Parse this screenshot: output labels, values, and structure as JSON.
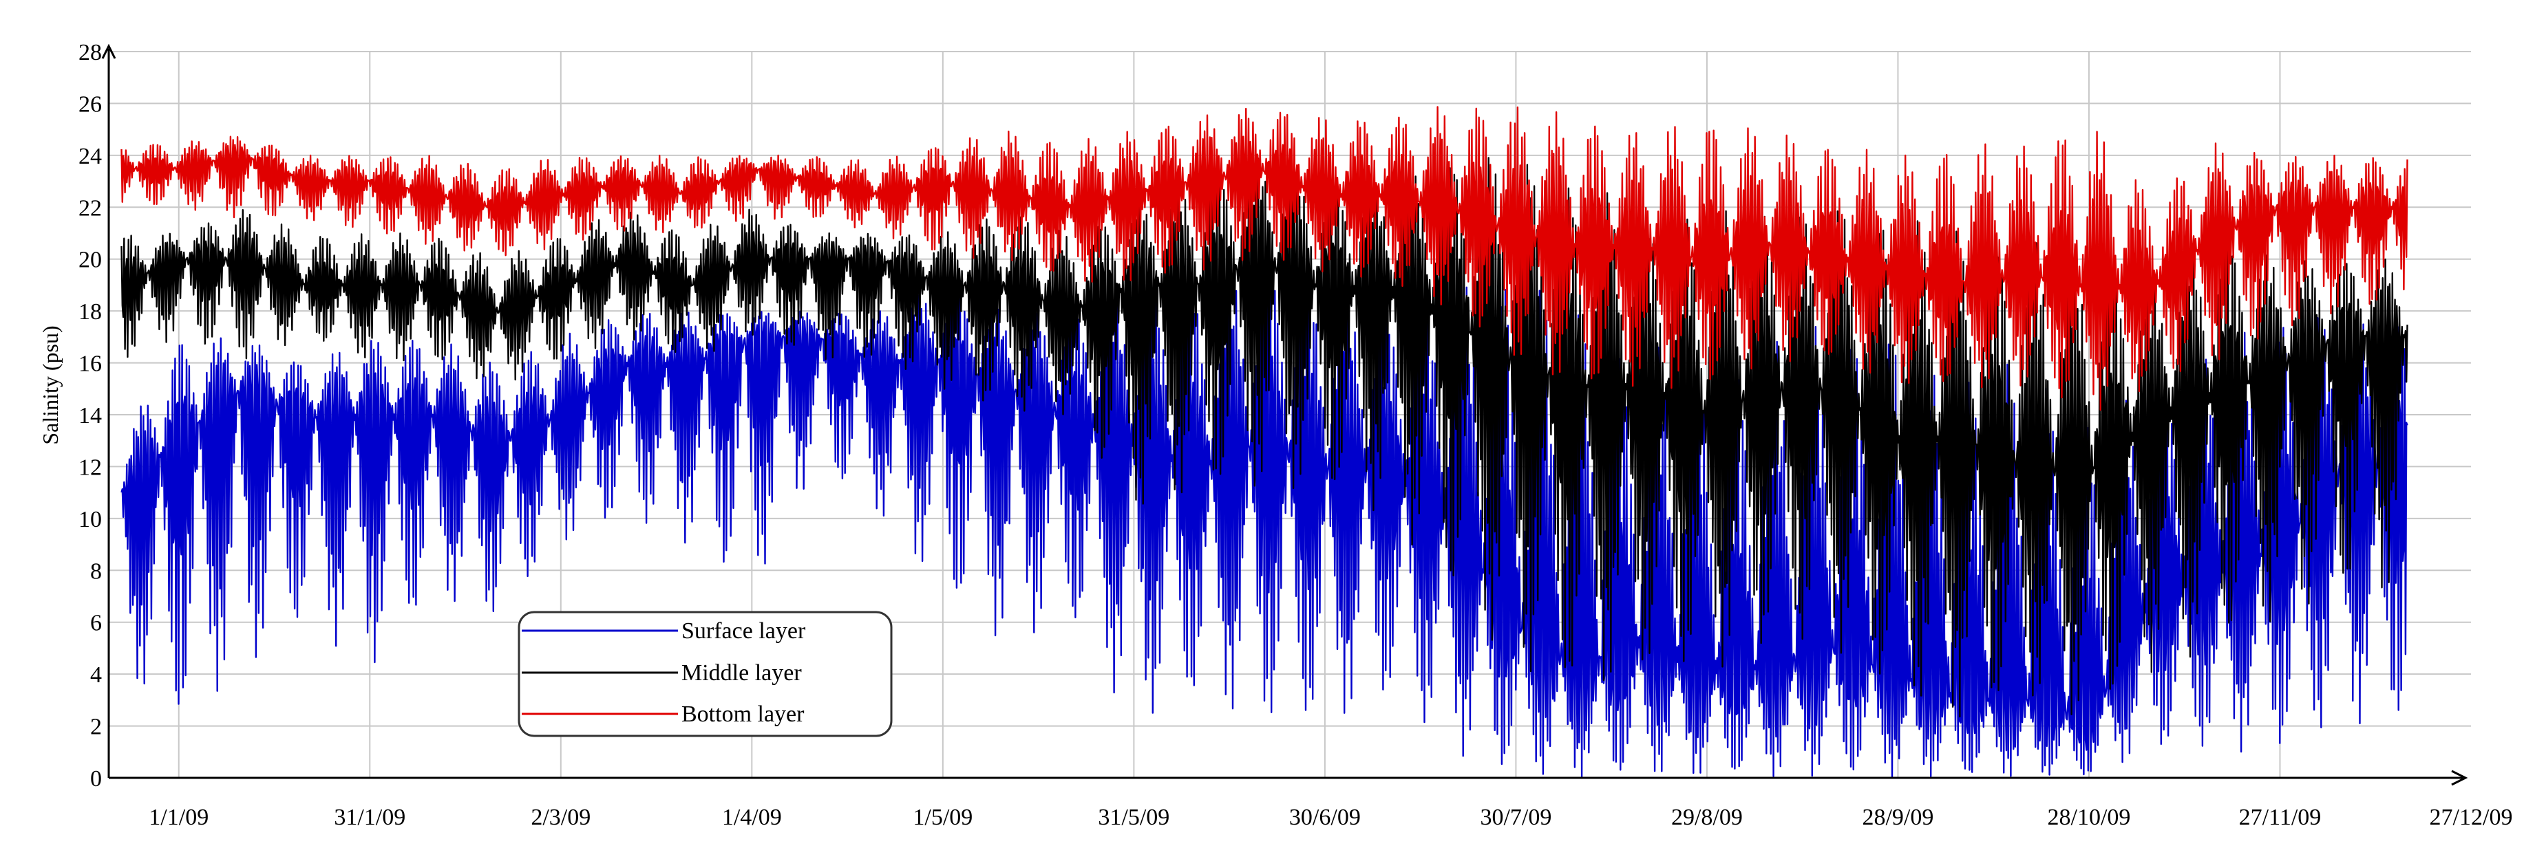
{
  "chart_data": {
    "type": "line",
    "xlabel": "",
    "ylabel": "Salinity (psu)",
    "ylim": [
      0,
      28
    ],
    "y_ticks": [
      0,
      2,
      4,
      6,
      8,
      10,
      12,
      14,
      16,
      18,
      20,
      22,
      24,
      26,
      28
    ],
    "y_tick_labels": [
      "0",
      "2",
      "4",
      "6",
      "8",
      "10",
      "12",
      "14",
      "16",
      "18",
      "20",
      "22",
      "24",
      "26",
      "28"
    ],
    "x_range_days": [
      "2008-12-21",
      "2009-12-27"
    ],
    "x_ticks": [
      "2009-01-01",
      "2009-01-31",
      "2009-03-02",
      "2009-04-01",
      "2009-05-01",
      "2009-05-31",
      "2009-06-30",
      "2009-07-30",
      "2009-08-29",
      "2009-09-28",
      "2009-10-28",
      "2009-11-27",
      "2009-12-27"
    ],
    "x_tick_labels": [
      "1/1/09",
      "31/1/09",
      "2/3/09",
      "1/4/09",
      "1/5/09",
      "31/5/09",
      "30/6/09",
      "30/7/09",
      "29/8/09",
      "28/9/09",
      "28/10/09",
      "27/11/09",
      "27/12/09"
    ],
    "grid": true,
    "legend_position": "bottom-left",
    "series": [
      {
        "name": "Surface layer",
        "color": "#0000cc",
        "x": [
          "2008-12-23",
          "2009-01-01",
          "2009-01-11",
          "2009-01-21",
          "2009-01-31",
          "2009-02-10",
          "2009-02-20",
          "2009-03-02",
          "2009-03-12",
          "2009-03-22",
          "2009-04-01",
          "2009-04-11",
          "2009-04-21",
          "2009-05-01",
          "2009-05-11",
          "2009-05-21",
          "2009-05-31",
          "2009-06-10",
          "2009-06-20",
          "2009-06-30",
          "2009-07-10",
          "2009-07-20",
          "2009-07-30",
          "2009-08-09",
          "2009-08-19",
          "2009-08-29",
          "2009-09-08",
          "2009-09-18",
          "2009-09-28",
          "2009-10-08",
          "2009-10-18",
          "2009-10-28",
          "2009-11-07",
          "2009-11-17",
          "2009-11-27",
          "2009-12-07",
          "2009-12-17"
        ],
        "max": [
          13,
          17,
          17,
          16,
          17,
          17,
          16,
          17,
          18,
          18,
          18,
          18,
          18,
          19,
          18,
          18,
          19,
          19,
          20,
          19,
          18,
          19,
          20,
          18,
          17,
          16,
          17,
          18,
          17,
          16,
          16,
          14,
          15,
          17,
          18,
          18,
          18
        ],
        "mean": [
          11,
          13,
          15,
          14,
          14,
          14,
          13,
          14,
          16,
          16,
          17,
          17,
          16,
          16,
          15,
          14,
          13,
          12,
          13,
          12,
          12,
          10,
          6,
          4,
          5,
          4,
          4,
          5,
          4,
          3,
          3,
          2,
          7,
          8,
          9,
          12,
          12
        ],
        "min": [
          4,
          2,
          4,
          6,
          4,
          7,
          6,
          9,
          10,
          9,
          7,
          12,
          10,
          7,
          5,
          6,
          2,
          3,
          2,
          2,
          3,
          1,
          0,
          0,
          0,
          0,
          0,
          0,
          0,
          0,
          0,
          0,
          1,
          1,
          1,
          2,
          2
        ]
      },
      {
        "name": "Middle layer",
        "color": "#000000",
        "x": [
          "2008-12-23",
          "2009-01-01",
          "2009-01-11",
          "2009-01-21",
          "2009-01-31",
          "2009-02-10",
          "2009-02-20",
          "2009-03-02",
          "2009-03-12",
          "2009-03-22",
          "2009-04-01",
          "2009-04-11",
          "2009-04-21",
          "2009-05-01",
          "2009-05-11",
          "2009-05-21",
          "2009-05-31",
          "2009-06-10",
          "2009-06-20",
          "2009-06-30",
          "2009-07-10",
          "2009-07-20",
          "2009-07-30",
          "2009-08-09",
          "2009-08-19",
          "2009-08-29",
          "2009-09-08",
          "2009-09-18",
          "2009-09-28",
          "2009-10-08",
          "2009-10-18",
          "2009-10-28",
          "2009-11-07",
          "2009-11-17",
          "2009-11-27",
          "2009-12-07",
          "2009-12-17"
        ],
        "max": [
          21,
          21,
          22,
          21,
          21,
          21,
          20,
          21,
          22,
          21,
          22,
          21,
          21,
          21,
          22,
          21,
          22,
          23,
          24,
          23,
          23,
          24,
          24,
          23,
          22,
          22,
          22,
          22,
          22,
          21,
          21,
          20,
          19,
          21,
          20,
          20,
          20
        ],
        "mean": [
          19,
          20,
          20,
          19,
          19,
          19,
          18,
          19,
          20,
          19,
          20,
          20,
          20,
          19,
          19,
          18,
          19,
          19,
          20,
          19,
          19,
          18,
          16,
          15,
          15,
          14,
          15,
          15,
          13,
          13,
          12,
          12,
          14,
          15,
          16,
          17,
          17
        ],
        "min": [
          16,
          17,
          16,
          17,
          16,
          16,
          15,
          16,
          17,
          16,
          17,
          16,
          16,
          15,
          14,
          14,
          10,
          11,
          11,
          11,
          10,
          7,
          4,
          3,
          4,
          4,
          5,
          5,
          3,
          2,
          3,
          2,
          4,
          5,
          6,
          7,
          7
        ]
      },
      {
        "name": "Bottom layer",
        "color": "#e00000",
        "x": [
          "2008-12-23",
          "2009-01-01",
          "2009-01-11",
          "2009-01-21",
          "2009-01-31",
          "2009-02-10",
          "2009-02-20",
          "2009-03-02",
          "2009-03-12",
          "2009-03-22",
          "2009-04-01",
          "2009-04-11",
          "2009-04-21",
          "2009-05-01",
          "2009-05-11",
          "2009-05-21",
          "2009-05-31",
          "2009-06-10",
          "2009-06-20",
          "2009-06-30",
          "2009-07-10",
          "2009-07-20",
          "2009-07-30",
          "2009-08-09",
          "2009-08-19",
          "2009-08-29",
          "2009-09-08",
          "2009-09-18",
          "2009-09-28",
          "2009-10-08",
          "2009-10-18",
          "2009-10-28",
          "2009-11-07",
          "2009-11-17",
          "2009-11-27",
          "2009-12-07",
          "2009-12-17"
        ],
        "max": [
          24.5,
          24.5,
          24.8,
          24,
          24,
          24,
          23.5,
          24,
          24,
          24,
          24,
          24,
          23.8,
          24.5,
          25,
          24.5,
          25,
          25.5,
          26,
          25.5,
          25.5,
          26,
          26,
          25.5,
          25,
          25.5,
          25,
          24.5,
          24,
          24.5,
          24.5,
          25.5,
          22.5,
          24.5,
          24,
          24,
          24
        ],
        "mean": [
          23.5,
          23.5,
          24,
          23,
          23,
          22.5,
          22,
          22.5,
          23,
          22.5,
          23.5,
          23,
          22.5,
          23,
          22.5,
          22,
          22.5,
          23,
          23.5,
          22.5,
          22.5,
          22,
          21,
          20.5,
          20.5,
          20,
          20.5,
          20,
          19.5,
          19,
          19.5,
          19,
          19,
          21,
          22,
          22,
          22
        ],
        "min": [
          22,
          22,
          21.5,
          21.5,
          21,
          20.5,
          20,
          20.5,
          21,
          21,
          21.5,
          21.5,
          21,
          20,
          20,
          19,
          19,
          19.5,
          20,
          19.5,
          19,
          18,
          16,
          15,
          15,
          15,
          16,
          16,
          15,
          15,
          15,
          14,
          15,
          16,
          17,
          18,
          18
        ]
      }
    ]
  }
}
